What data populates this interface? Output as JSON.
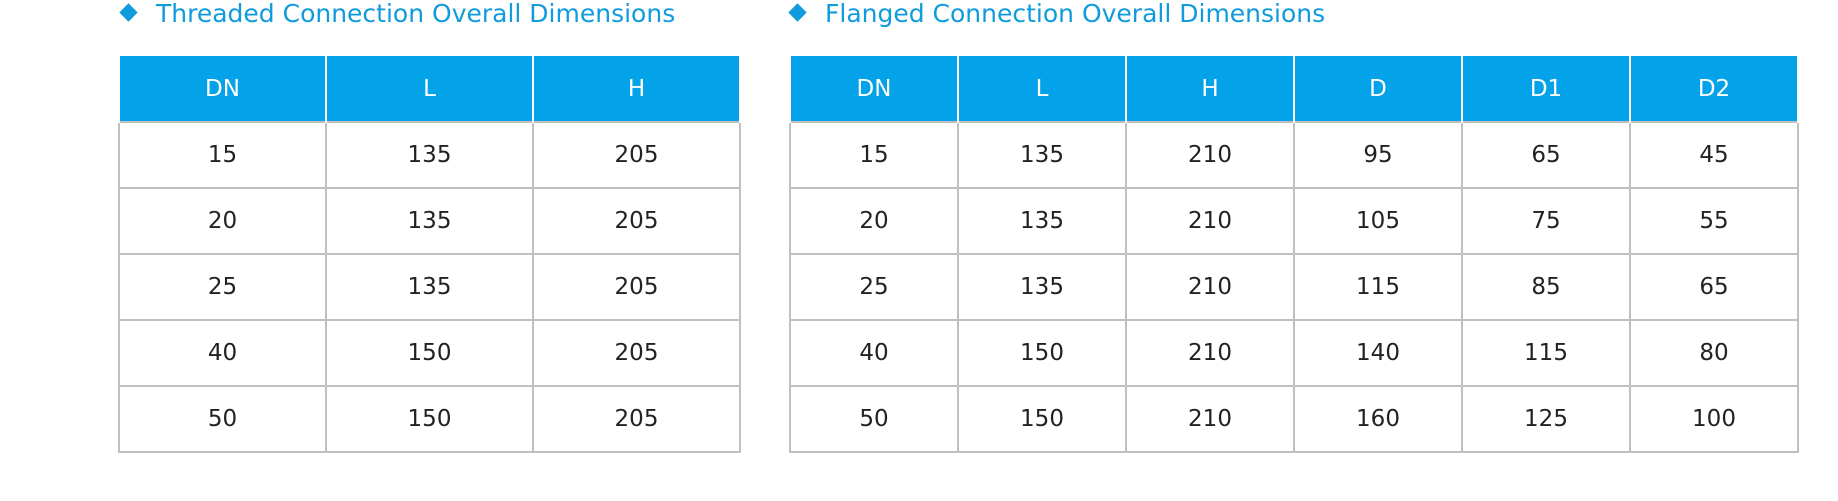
{
  "tables": [
    {
      "title": "Threaded Connection Overall Dimensions",
      "columns": [
        "DN",
        "L",
        "H"
      ],
      "rows": [
        [
          15,
          135,
          205
        ],
        [
          20,
          135,
          205
        ],
        [
          25,
          135,
          205
        ],
        [
          40,
          150,
          205
        ],
        [
          50,
          150,
          205
        ]
      ]
    },
    {
      "title": "Flanged Connection Overall Dimensions",
      "columns": [
        "DN",
        "L",
        "H",
        "D",
        "D1",
        "D2"
      ],
      "rows": [
        [
          15,
          135,
          210,
          95,
          65,
          45
        ],
        [
          20,
          135,
          210,
          105,
          75,
          55
        ],
        [
          25,
          135,
          210,
          115,
          85,
          65
        ],
        [
          40,
          150,
          210,
          140,
          115,
          80
        ],
        [
          50,
          150,
          210,
          160,
          125,
          100
        ]
      ]
    }
  ]
}
